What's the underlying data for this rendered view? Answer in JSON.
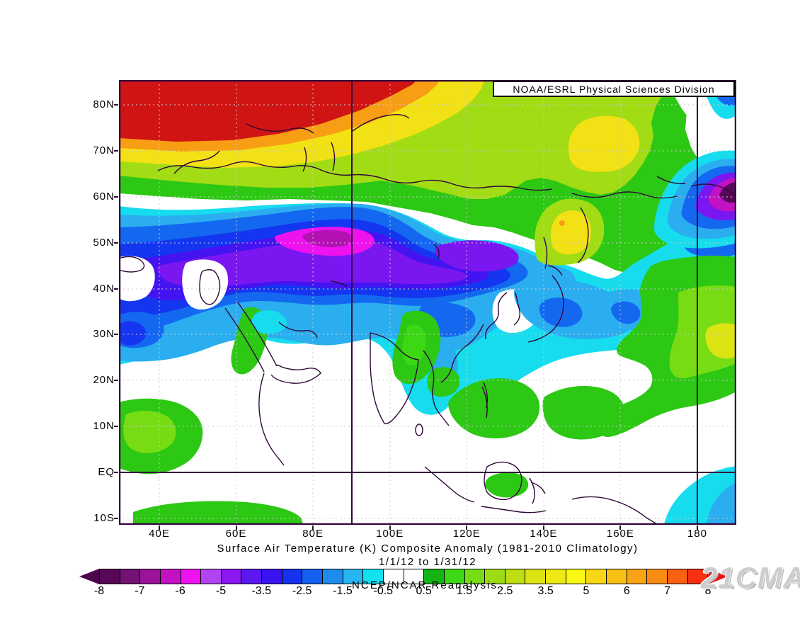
{
  "branding": {
    "division_label": "NOAA/ESRL Physical Sciences Division"
  },
  "watermark": "21CMA",
  "captions": {
    "title": "Surface Air Temperature (K) Composite Anomaly (1981-2010 Climatology)",
    "date_range": "1/1/12  to 1/31/12",
    "dataset": "NCEP/NCAR Reanalysis"
  },
  "map": {
    "frame_color": "#35083d",
    "coastline_color": "#2f0838",
    "grid_color": "#cccccc",
    "reference_lines": {
      "meridians": [
        "90E",
        "180"
      ],
      "parallels": [
        "EQ"
      ]
    },
    "y_axis": {
      "ticks": [
        "80N",
        "70N",
        "60N",
        "50N",
        "40N",
        "30N",
        "20N",
        "10N",
        "EQ",
        "10S"
      ]
    },
    "x_axis": {
      "ticks": [
        "40E",
        "60E",
        "80E",
        "100E",
        "120E",
        "140E",
        "160E",
        "180"
      ]
    }
  },
  "colorbar": {
    "units": "K",
    "labels": [
      "-8",
      "-7",
      "-6",
      "-5",
      "-3.5",
      "-2.5",
      "-1.5",
      "-0.5",
      "0.5",
      "1.5",
      "2.5",
      "3.5",
      "5",
      "6",
      "7",
      "8"
    ],
    "cell_colors": [
      "#570857",
      "#731273",
      "#9b129b",
      "#c312c3",
      "#ee12ee",
      "#b044f0",
      "#8a17f0",
      "#5a17f0",
      "#3912f0",
      "#1432f0",
      "#1460f0",
      "#1e8cec",
      "#28b6f0",
      "#14e1f0",
      "#ffffff",
      "#ffffff",
      "#14b414",
      "#3cd814",
      "#78dc14",
      "#9bdc14",
      "#bede14",
      "#dce414",
      "#f0e814",
      "#f8f814",
      "#f8d814",
      "#f8c014",
      "#f8a414",
      "#f88c14",
      "#f86014",
      "#f83014"
    ],
    "left_arrow_color": "#4c064c",
    "right_arrow_color": "#e81414"
  },
  "chart_data": {
    "type": "heatmap",
    "variable": "Surface Air Temperature Composite Anomaly",
    "units": "K",
    "climatology": "1981-2010",
    "period": "1/1/12 to 1/31/12",
    "source": "NCEP/NCAR Reanalysis",
    "region": {
      "lon_range": [
        "30E",
        "190E"
      ],
      "lat_range": [
        "10S",
        "85N"
      ]
    },
    "contour_levels": [
      -8,
      -7,
      -6,
      -5,
      -3.5,
      -2.5,
      -1.5,
      -0.5,
      0.5,
      1.5,
      2.5,
      3.5,
      5,
      6,
      7,
      8
    ],
    "features": [
      {
        "region": "Barents/Kara Seas and NW Russia (30E-80E, 72N-85N)",
        "anomaly_K": "+7 to >+8 (warm core)"
      },
      {
        "region": "Arctic coastal band across Siberia (80E-170E, 65N-82N)",
        "anomaly_K": "+1 to +4"
      },
      {
        "region": "Kolyma / NE Siberia (140E-165E, 62N-75N)",
        "anomaly_K": "+3 to +5 (yellow patches)"
      },
      {
        "region": "Kamchatka (150E-160E, 50N-58N)",
        "anomaly_K": "+2 to +4"
      },
      {
        "region": "Central Siberia / Kazakhstan cold core (60E-100E, 45N-58N)",
        "anomaly_K": "-5 to -7 (magenta core)"
      },
      {
        "region": "Broad Eurasian cold mass (40E-145E, 25N-65N)",
        "anomaly_K": "-0.5 to -5"
      },
      {
        "region": "Amur / NE China (118E-135E, 48N-57N)",
        "anomaly_K": "-4 to -5"
      },
      {
        "region": "Middle East (30E-55E, 25N-40N)",
        "anomaly_K": "-0.5 to -3"
      },
      {
        "region": "North India / Himalaya (65E-95E, 22N-35N)",
        "anomaly_K": "-1 to -3"
      },
      {
        "region": "Japan and surrounding seas (128E-155E, 28N-45N)",
        "anomaly_K": "-0.5 to -2.5"
      },
      {
        "region": "Bering Sea / Alaska corner (170E-190E, 55N-65N)",
        "anomaly_K": "-5 to <-8 (dark cold core at map edge)"
      },
      {
        "region": "Central North Pacific (160E-190E, 15N-48N)",
        "anomaly_K": "+0.5 to +2.5 (green/yellow-green)"
      },
      {
        "region": "Philippines and tropical W Pacific (115E-155E, 0-20N)",
        "anomaly_K": "+0.5 to +1.5"
      },
      {
        "region": "Myanmar / Indochina (92E-108E, 8N-28N)",
        "anomaly_K": "+0.5 to +1.5"
      },
      {
        "region": "East Africa near equator (30E-45E, 5S-5N)",
        "anomaly_K": "+0.5 to +1.5"
      },
      {
        "region": "SW Pacific near date line (172E-190E, 10S-3N)",
        "anomaly_K": "-0.5 to -1.5"
      }
    ]
  }
}
